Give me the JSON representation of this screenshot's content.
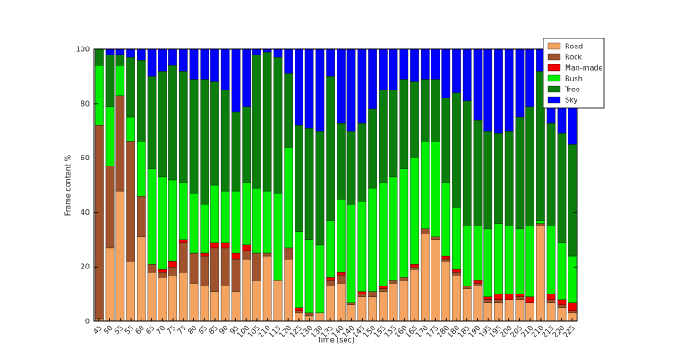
{
  "chart_data": {
    "type": "stacked_bar",
    "x_label": "Time (sec)",
    "y_label": "Frame content %",
    "categories": [
      "45",
      "50",
      "55",
      "55",
      "60",
      "65",
      "70",
      "75",
      "75",
      "80",
      "85",
      "85",
      "90",
      "95",
      "100",
      "105",
      "110",
      "115",
      "120",
      "125",
      "130",
      "130",
      "135",
      "140",
      "140",
      "145",
      "150",
      "155",
      "155",
      "160",
      "165",
      "170",
      "175",
      "180",
      "180",
      "185",
      "190",
      "195",
      "195",
      "200",
      "205",
      "210",
      "210",
      "215",
      "220",
      "225"
    ],
    "series": [
      {
        "name": "Road",
        "color": "#f4a460",
        "values": [
          1,
          27,
          48,
          22,
          31,
          18,
          16,
          17,
          18,
          14,
          13,
          11,
          13,
          11,
          23,
          15,
          24,
          15,
          23,
          3,
          2,
          3,
          13,
          14,
          6,
          9,
          9,
          11,
          14,
          15,
          19,
          32,
          30,
          22,
          17,
          12,
          13,
          7,
          7,
          8,
          8,
          7,
          35,
          7,
          5,
          3
        ]
      },
      {
        "name": "Rock",
        "color": "#a0522d",
        "values": [
          71,
          30,
          35,
          44,
          15,
          3,
          2,
          3,
          11,
          11,
          11,
          16,
          14,
          12,
          3,
          10,
          1,
          0,
          4,
          1,
          1,
          0,
          2,
          3,
          1,
          1,
          2,
          1,
          1,
          1,
          1,
          2,
          1,
          1,
          1,
          1,
          1,
          1,
          1,
          0,
          1,
          0,
          1,
          1,
          1,
          1
        ]
      },
      {
        "name": "Man-made",
        "color": "#ee0000",
        "values": [
          0,
          0,
          0,
          0,
          0,
          0,
          1,
          2,
          1,
          0,
          1,
          2,
          2,
          2,
          2,
          0,
          0,
          0,
          0,
          1,
          0,
          0,
          1,
          1,
          0,
          1,
          0,
          1,
          0,
          0,
          1,
          0,
          0,
          1,
          1,
          0,
          1,
          1,
          2,
          2,
          1,
          2,
          0,
          2,
          2,
          3
        ]
      },
      {
        "name": "Bush",
        "color": "#00ee00",
        "values": [
          22,
          22,
          11,
          9,
          20,
          35,
          34,
          30,
          21,
          22,
          18,
          21,
          19,
          23,
          23,
          24,
          23,
          32,
          37,
          28,
          27,
          25,
          21,
          27,
          36,
          33,
          38,
          38,
          38,
          40,
          39,
          32,
          35,
          27,
          23,
          22,
          20,
          25,
          26,
          25,
          24,
          26,
          1,
          25,
          21,
          17
        ]
      },
      {
        "name": "Tree",
        "color": "#0a7d0a",
        "values": [
          6,
          19,
          4,
          22,
          30,
          34,
          39,
          42,
          41,
          42,
          46,
          38,
          37,
          29,
          28,
          49,
          51,
          50,
          27,
          39,
          41,
          42,
          53,
          28,
          27,
          29,
          29,
          34,
          32,
          33,
          28,
          23,
          23,
          31,
          42,
          46,
          39,
          36,
          33,
          35,
          41,
          44,
          55,
          38,
          40,
          41
        ]
      },
      {
        "name": "Sky",
        "color": "#0000ff",
        "values": [
          0,
          2,
          2,
          3,
          4,
          10,
          8,
          6,
          8,
          11,
          11,
          12,
          15,
          23,
          21,
          2,
          1,
          3,
          9,
          28,
          29,
          30,
          10,
          27,
          30,
          27,
          22,
          15,
          15,
          11,
          12,
          11,
          11,
          18,
          16,
          19,
          26,
          30,
          31,
          30,
          25,
          21,
          8,
          27,
          31,
          35
        ]
      }
    ],
    "ylim": [
      0,
      100
    ],
    "yticks": [
      0,
      20,
      40,
      60,
      80,
      100
    ],
    "legend": "upper right",
    "grid": false
  }
}
